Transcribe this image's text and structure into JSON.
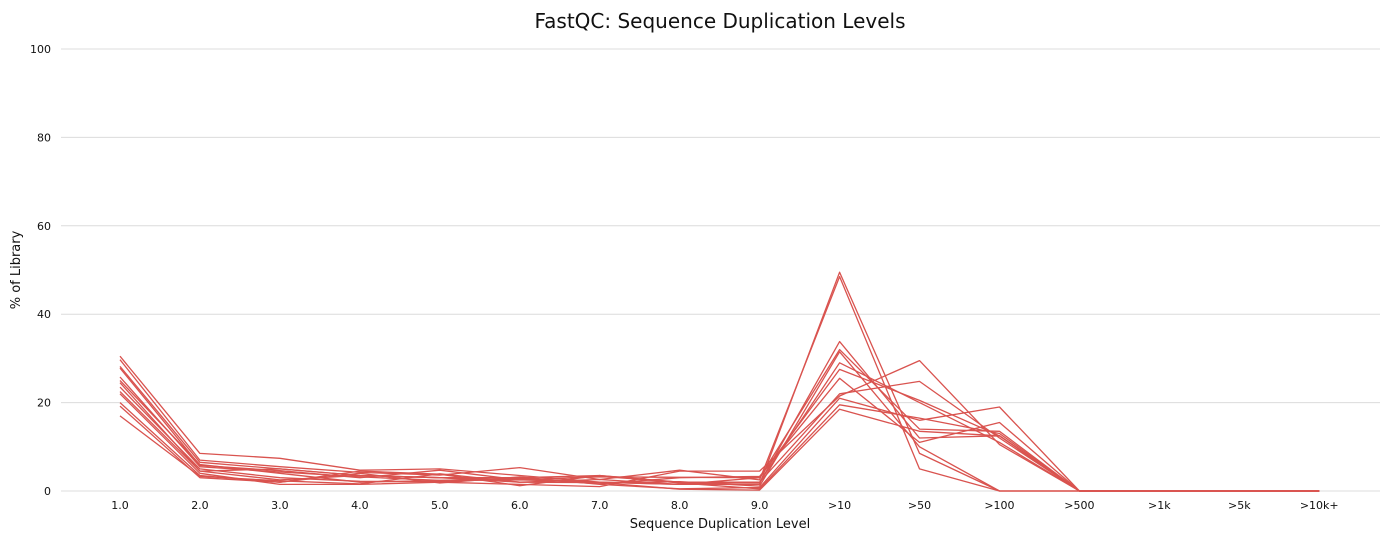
{
  "chart_data": {
    "type": "line",
    "title": "FastQC: Sequence Duplication Levels",
    "xlabel": "Sequence Duplication Level",
    "ylabel": "% of Library",
    "ylim": [
      0,
      100
    ],
    "yticks": [
      "0",
      "20",
      "40",
      "60",
      "80",
      "100"
    ],
    "grid": true,
    "legend": "none",
    "color": "#d9534f",
    "categories": [
      "1.0",
      "2.0",
      "3.0",
      "4.0",
      "5.0",
      "6.0",
      "7.0",
      "8.0",
      "9.0",
      ">10",
      ">50",
      ">100",
      ">500",
      ">1k",
      ">5k",
      ">10k+"
    ],
    "series": [
      {
        "values": [
          30.5,
          8.5,
          7.4,
          4.7,
          5.0,
          3.5,
          2.0,
          1.5,
          1.5,
          49.5,
          8.5,
          0.0,
          0.0,
          0.0,
          0.0,
          0.0
        ]
      },
      {
        "values": [
          29.7,
          7.0,
          5.5,
          4.2,
          3.6,
          5.3,
          2.6,
          4.7,
          2.5,
          48.5,
          5.0,
          0.0,
          0.0,
          0.0,
          0.0,
          0.0
        ]
      },
      {
        "values": [
          28.2,
          6.5,
          5.0,
          3.5,
          3.0,
          2.5,
          3.3,
          2.0,
          1.8,
          33.8,
          12.0,
          12.5,
          0.0,
          0.0,
          0.0,
          0.0
        ]
      },
      {
        "values": [
          27.8,
          5.8,
          4.6,
          3.0,
          4.7,
          2.5,
          3.2,
          3.1,
          3.0,
          32.0,
          14.0,
          13.5,
          0.0,
          0.0,
          0.0,
          0.0
        ]
      },
      {
        "values": [
          25.8,
          5.5,
          4.3,
          3.2,
          2.4,
          2.9,
          1.9,
          2.1,
          1.1,
          31.5,
          10.0,
          0.0,
          0.0,
          0.0,
          0.0,
          0.0
        ]
      },
      {
        "values": [
          25.0,
          6.0,
          4.0,
          2.0,
          2.4,
          2.5,
          2.0,
          1.5,
          2.0,
          29.0,
          20.0,
          11.0,
          0.0,
          0.0,
          0.0,
          0.0
        ]
      },
      {
        "values": [
          24.5,
          4.5,
          2.5,
          3.5,
          3.0,
          2.0,
          2.6,
          1.5,
          3.0,
          27.5,
          20.5,
          12.5,
          0.0,
          0.0,
          0.0,
          0.0
        ]
      },
      {
        "values": [
          23.5,
          5.0,
          3.0,
          2.2,
          2.1,
          2.8,
          1.6,
          3.0,
          3.3,
          25.5,
          11.0,
          15.5,
          0.0,
          0.0,
          0.0,
          0.0
        ]
      },
      {
        "values": [
          22.5,
          4.5,
          5.0,
          3.5,
          3.0,
          3.0,
          3.5,
          2.0,
          2.0,
          22.0,
          24.8,
          12.0,
          0.0,
          0.0,
          0.0,
          0.0
        ]
      },
      {
        "values": [
          22.0,
          4.0,
          1.5,
          1.5,
          2.0,
          1.5,
          1.0,
          4.5,
          4.5,
          21.5,
          29.5,
          10.5,
          0.0,
          0.0,
          0.0,
          0.0
        ]
      },
      {
        "values": [
          20.0,
          3.5,
          2.0,
          4.0,
          1.8,
          3.2,
          1.5,
          0.5,
          0.8,
          21.0,
          16.0,
          19.0,
          0.0,
          0.0,
          0.0,
          0.0
        ]
      },
      {
        "values": [
          19.2,
          3.0,
          2.0,
          4.5,
          3.8,
          1.2,
          3.5,
          1.8,
          0.5,
          19.5,
          16.5,
          13.0,
          0.0,
          0.0,
          0.0,
          0.0
        ]
      },
      {
        "values": [
          17.0,
          3.3,
          2.3,
          1.6,
          3.9,
          2.0,
          1.9,
          0.4,
          0.2,
          18.5,
          13.5,
          12.5,
          0.0,
          0.0,
          0.0,
          0.0
        ]
      }
    ]
  }
}
